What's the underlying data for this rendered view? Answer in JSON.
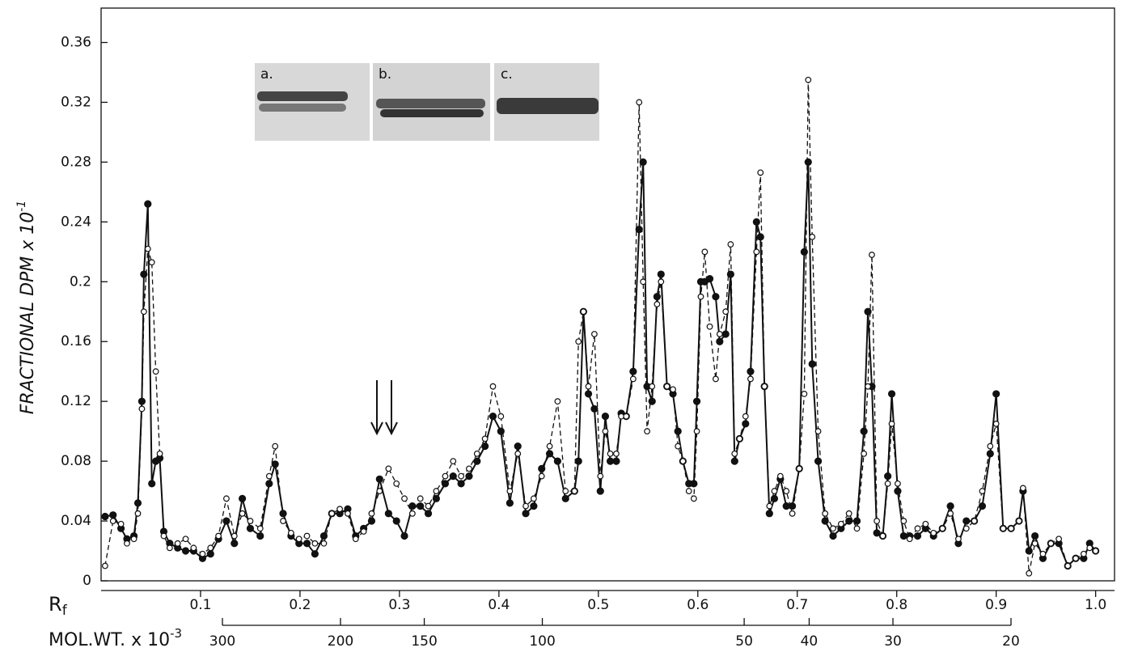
{
  "chart_data": {
    "type": "line",
    "y_label": "FRACTIONAL  DPM x 10",
    "y_label_exponent": "-1",
    "x_label": "R",
    "x_label_subscript": "f",
    "mw_label": "MOL.WT. x 10",
    "mw_label_exponent": "-3",
    "inset_labels": [
      "a.",
      "b.",
      "c."
    ],
    "xlim": [
      0,
      1.019
    ],
    "ylim": [
      0,
      0.383
    ],
    "xticks": [
      0.1,
      0.2,
      0.3,
      0.4,
      0.5,
      0.6,
      0.7,
      0.8,
      0.9,
      {
        "value": 1,
        "label": "1.0"
      }
    ],
    "yticks": [
      0,
      0.04,
      0.08,
      0.12,
      0.16,
      0.2,
      0.24,
      0.28,
      0.32,
      0.36
    ],
    "mw_axis": {
      "log": true,
      "lim": [
        300,
        20
      ],
      "ticks": [
        300,
        200,
        150,
        100,
        50,
        40,
        30,
        20
      ]
    },
    "x": [
      0.004,
      0.012,
      0.02,
      0.026,
      0.033,
      0.037,
      0.041,
      0.043,
      0.047,
      0.051,
      0.055,
      0.059,
      0.063,
      0.069,
      0.077,
      0.085,
      0.093,
      0.102,
      0.11,
      0.118,
      0.126,
      0.134,
      0.142,
      0.15,
      0.16,
      0.169,
      0.175,
      0.183,
      0.191,
      0.199,
      0.207,
      0.215,
      0.224,
      0.232,
      0.24,
      0.248,
      0.256,
      0.264,
      0.272,
      0.28,
      0.289,
      0.297,
      0.305,
      0.313,
      0.321,
      0.329,
      0.337,
      0.346,
      0.354,
      0.362,
      0.37,
      0.378,
      0.386,
      0.394,
      0.402,
      0.411,
      0.419,
      0.427,
      0.435,
      0.443,
      0.451,
      0.459,
      0.467,
      0.476,
      0.48,
      0.485,
      0.49,
      0.496,
      0.502,
      0.507,
      0.512,
      0.518,
      0.523,
      0.528,
      0.535,
      0.541,
      0.545,
      0.549,
      0.554,
      0.559,
      0.563,
      0.569,
      0.575,
      0.58,
      0.585,
      0.591,
      0.596,
      0.599,
      0.603,
      0.607,
      0.612,
      0.618,
      0.622,
      0.628,
      0.633,
      0.637,
      0.642,
      0.648,
      0.653,
      0.659,
      0.663,
      0.667,
      0.672,
      0.677,
      0.683,
      0.689,
      0.695,
      0.702,
      0.707,
      0.711,
      0.715,
      0.721,
      0.728,
      0.736,
      0.744,
      0.752,
      0.76,
      0.767,
      0.771,
      0.775,
      0.78,
      0.786,
      0.791,
      0.795,
      0.801,
      0.807,
      0.813,
      0.821,
      0.829,
      0.837,
      0.846,
      0.854,
      0.862,
      0.87,
      0.878,
      0.886,
      0.894,
      0.9,
      0.907,
      0.915,
      0.923,
      0.927,
      0.933,
      0.939,
      0.947,
      0.955,
      0.963,
      0.972,
      0.98,
      0.988,
      0.994,
      1.0
    ],
    "series": [
      {
        "style": "solid",
        "color": "#111111",
        "values": [
          0.043,
          0.044,
          0.035,
          0.028,
          0.03,
          0.052,
          0.12,
          0.205,
          0.252,
          0.065,
          0.08,
          0.082,
          0.033,
          0.025,
          0.022,
          0.02,
          0.02,
          0.015,
          0.018,
          0.028,
          0.04,
          0.025,
          0.055,
          0.035,
          0.03,
          0.065,
          0.078,
          0.045,
          0.03,
          0.025,
          0.025,
          0.018,
          0.03,
          0.045,
          0.045,
          0.048,
          0.03,
          0.035,
          0.04,
          0.068,
          0.045,
          0.04,
          0.03,
          0.05,
          0.05,
          0.045,
          0.055,
          0.065,
          0.07,
          0.065,
          0.07,
          0.08,
          0.09,
          0.11,
          0.1,
          0.052,
          0.09,
          0.045,
          0.05,
          0.075,
          0.085,
          0.08,
          0.055,
          0.06,
          0.08,
          0.18,
          0.125,
          0.115,
          0.06,
          0.11,
          0.08,
          0.08,
          0.112,
          0.11,
          0.14,
          0.235,
          0.28,
          0.13,
          0.12,
          0.19,
          0.205,
          0.13,
          0.125,
          0.1,
          0.08,
          0.065,
          0.065,
          0.12,
          0.2,
          0.2,
          0.202,
          0.19,
          0.16,
          0.165,
          0.205,
          0.08,
          0.095,
          0.105,
          0.14,
          0.24,
          0.23,
          0.13,
          0.045,
          0.055,
          0.068,
          0.05,
          0.05,
          0.075,
          0.22,
          0.28,
          0.145,
          0.08,
          0.04,
          0.03,
          0.035,
          0.04,
          0.04,
          0.1,
          0.18,
          0.13,
          0.032,
          0.03,
          0.07,
          0.125,
          0.06,
          0.03,
          0.03,
          0.03,
          0.035,
          0.03,
          0.035,
          0.05,
          0.025,
          0.04,
          0.04,
          0.05,
          0.085,
          0.125,
          0.035,
          0.035,
          0.04,
          0.06,
          0.02,
          0.03,
          0.015,
          0.025,
          0.025,
          0.01,
          0.015,
          0.015,
          0.025,
          0.02
        ]
      },
      {
        "style": "dashed",
        "color": "#111111",
        "values": [
          0.01,
          0.04,
          0.038,
          0.025,
          0.028,
          0.045,
          0.115,
          0.18,
          0.222,
          0.213,
          0.14,
          0.085,
          0.03,
          0.022,
          0.025,
          0.028,
          0.022,
          0.018,
          0.022,
          0.03,
          0.055,
          0.03,
          0.045,
          0.04,
          0.035,
          0.07,
          0.09,
          0.04,
          0.032,
          0.028,
          0.03,
          0.025,
          0.025,
          0.045,
          0.048,
          0.045,
          0.028,
          0.033,
          0.045,
          0.06,
          0.075,
          0.065,
          0.055,
          0.045,
          0.055,
          0.05,
          0.06,
          0.07,
          0.08,
          0.07,
          0.075,
          0.085,
          0.095,
          0.13,
          0.11,
          0.06,
          0.085,
          0.05,
          0.055,
          0.07,
          0.09,
          0.12,
          0.06,
          0.06,
          0.16,
          0.18,
          0.13,
          0.165,
          0.07,
          0.1,
          0.085,
          0.085,
          0.11,
          0.11,
          0.135,
          0.32,
          0.2,
          0.1,
          0.13,
          0.185,
          0.2,
          0.13,
          0.128,
          0.09,
          0.08,
          0.06,
          0.055,
          0.1,
          0.19,
          0.22,
          0.17,
          0.135,
          0.165,
          0.18,
          0.225,
          0.085,
          0.095,
          0.11,
          0.135,
          0.22,
          0.273,
          0.13,
          0.05,
          0.06,
          0.07,
          0.06,
          0.045,
          0.075,
          0.125,
          0.335,
          0.23,
          0.1,
          0.045,
          0.035,
          0.038,
          0.045,
          0.035,
          0.085,
          0.13,
          0.218,
          0.04,
          0.03,
          0.065,
          0.105,
          0.065,
          0.04,
          0.028,
          0.035,
          0.038,
          0.032,
          0.035,
          0.045,
          0.028,
          0.035,
          0.04,
          0.06,
          0.09,
          0.105,
          0.035,
          0.035,
          0.04,
          0.062,
          0.005,
          0.025,
          0.018,
          0.025,
          0.028,
          0.01,
          0.015,
          0.018,
          0.022,
          0.02
        ]
      }
    ]
  }
}
